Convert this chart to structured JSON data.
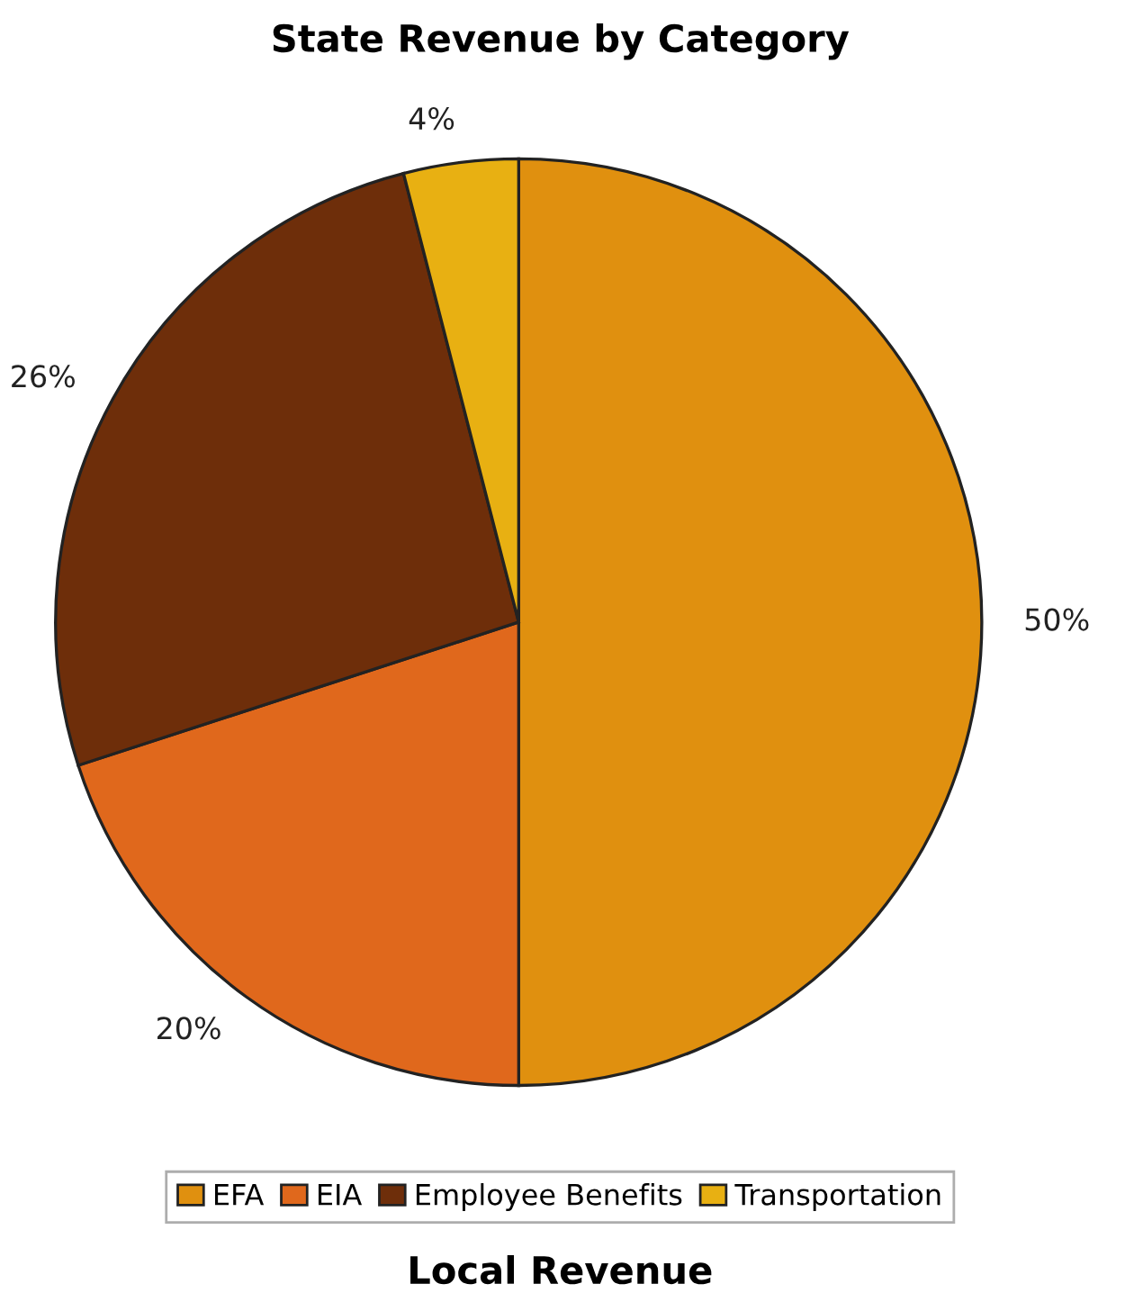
{
  "chart_data": {
    "type": "pie",
    "title": "State Revenue by Category",
    "categories": [
      "EFA",
      "EIA",
      "Employee Benefits",
      "Transportation"
    ],
    "values": [
      50,
      20,
      26,
      4
    ],
    "colors": [
      "#e0900f",
      "#e0681c",
      "#6e2e0a",
      "#e8b012"
    ],
    "value_labels": [
      "50%",
      "20%",
      "26%",
      "4%"
    ],
    "legend": "bottom",
    "annotations": [
      "Local Revenue"
    ]
  }
}
